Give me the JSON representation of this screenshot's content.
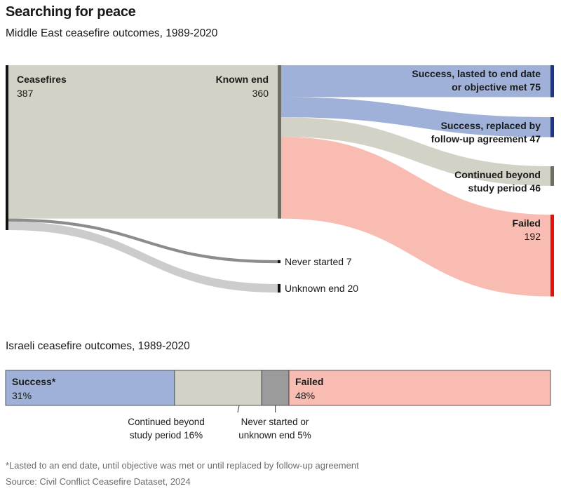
{
  "title": "Searching for peace",
  "subtitle": "Middle East ceasefire outcomes, 1989-2020",
  "colors": {
    "source": "#d3d2c6",
    "success": "#9fb1d8",
    "success_bar": "#1f3586",
    "continued_bar": "#6e6e62",
    "failed": "#f8bcb2",
    "failed_bar": "#e3120b",
    "never_link": "#8c8c8c",
    "unknown_link": "#cccccc",
    "dark_bar": "#111111",
    "grey": "#9b9b9b"
  },
  "chart_data": [
    {
      "type": "sankey",
      "title": "Middle East ceasefire outcomes, 1989-2020",
      "source": {
        "label": "Ceasefires",
        "value": 387
      },
      "known": {
        "label": "Known end",
        "value": 360
      },
      "outcomes": [
        {
          "label_lines": [
            "Success, lasted to end date",
            "or objective met 75"
          ],
          "value": 75,
          "color_key": "success",
          "bar_color_key": "success_bar"
        },
        {
          "label_lines": [
            "Success, replaced by",
            "follow-up agreement 47"
          ],
          "value": 47,
          "color_key": "success",
          "bar_color_key": "success_bar"
        },
        {
          "label_lines": [
            "Continued beyond",
            "study period 46"
          ],
          "value": 46,
          "color_key": "source",
          "bar_color_key": "continued_bar"
        },
        {
          "label_lines": [
            "Failed",
            "192"
          ],
          "value": 192,
          "color_key": "failed",
          "bar_color_key": "failed_bar"
        }
      ],
      "others": [
        {
          "label": "Never started 7",
          "value": 7,
          "color_key": "never_link"
        },
        {
          "label": "Unknown end 20",
          "value": 20,
          "color_key": "unknown_link"
        }
      ]
    },
    {
      "type": "stacked_bar",
      "title": "Israeli ceasefire outcomes, 1989-2020",
      "unit": "%",
      "segments": [
        {
          "label": "Success*",
          "value": 31,
          "value_label": "31%",
          "color_key": "success"
        },
        {
          "label": "Continued beyond study period 16%",
          "label_lines": [
            "Continued beyond",
            "study period 16%"
          ],
          "value": 16,
          "color_key": "source"
        },
        {
          "label": "Never started or unknown end 5%",
          "label_lines": [
            "Never started or",
            "unknown end 5%"
          ],
          "value": 5,
          "color_key": "grey"
        },
        {
          "label": "Failed",
          "value": 48,
          "value_label": "48%",
          "color_key": "failed"
        }
      ]
    }
  ],
  "footnote": "*Lasted to an end date, until objective was met or until replaced by follow-up agreement",
  "source_note": "Source: Civil Conflict Ceasefire Dataset, 2024"
}
